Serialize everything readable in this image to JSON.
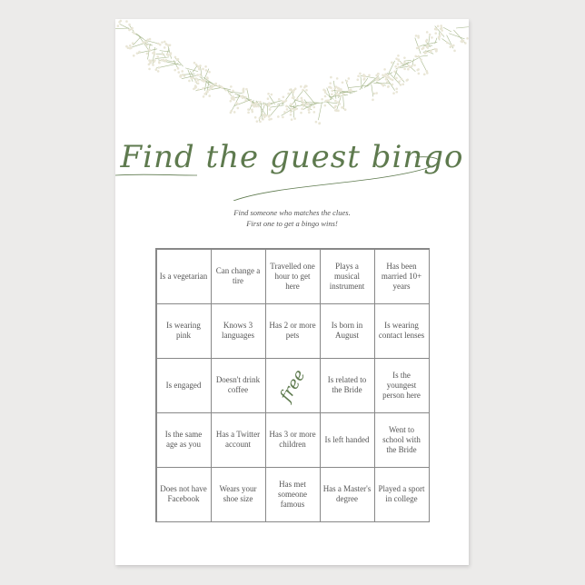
{
  "title": "Find the guest bingo",
  "subtitle": [
    "Find someone who matches the clues.",
    "First one to get a bingo wins!"
  ],
  "colors": {
    "accent": "#5e7a4e",
    "grid": "#888888"
  },
  "grid": [
    [
      "Is a vegetarian",
      "Can change a tire",
      "Travelled one hour to get here",
      "Plays a musical instrument",
      "Has been married 10+ years"
    ],
    [
      "Is wearing pink",
      "Knows 3 languages",
      "Has 2 or more pets",
      "Is born in August",
      "Is wearing contact lenses"
    ],
    [
      "Is engaged",
      "Doesn't drink coffee",
      "free",
      "Is related to the Bride",
      "Is the youngest person here"
    ],
    [
      "Is the same age as you",
      "Has a Twitter account",
      "Has 3 or more children",
      "Is left handed",
      "Went to school with the Bride"
    ],
    [
      "Does not have Facebook",
      "Wears your shoe size",
      "Has met someone famous",
      "Has a Master's degree",
      "Played a sport in college"
    ]
  ]
}
